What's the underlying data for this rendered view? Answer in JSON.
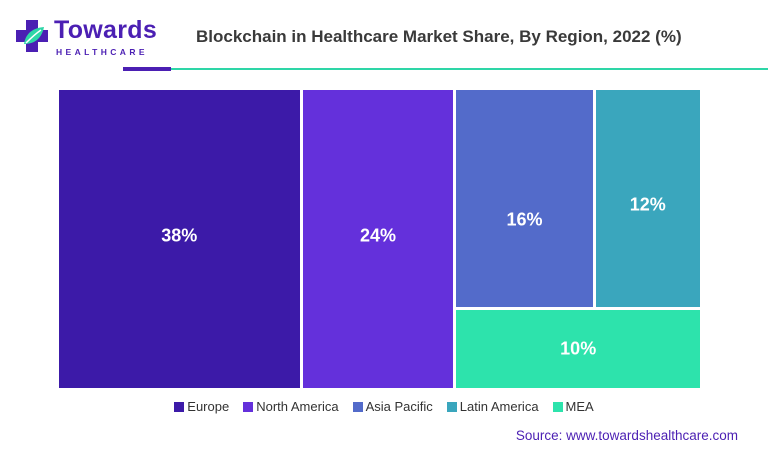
{
  "brand": {
    "name": "Towards",
    "sub": "HEALTHCARE",
    "color": "#4b1fb3",
    "accent": "#2ed6a7",
    "icon": "medical-cross-leaf-icon"
  },
  "source_text": "Source: www.towardshealthcare.com",
  "chart_data": {
    "type": "treemap",
    "title": "Blockchain in Healthcare Market Share, By Region, 2022 (%)",
    "unit": "%",
    "series": [
      {
        "name": "Europe",
        "value": 38,
        "label": "38%",
        "color": "#3c1aa8"
      },
      {
        "name": "North America",
        "value": 24,
        "label": "24%",
        "color": "#6430db"
      },
      {
        "name": "Asia Pacific",
        "value": 16,
        "label": "16%",
        "color": "#536bca"
      },
      {
        "name": "Latin America",
        "value": 12,
        "label": "12%",
        "color": "#3aa6bd"
      },
      {
        "name": "MEA",
        "value": 10,
        "label": "10%",
        "color": "#2de3ac"
      }
    ],
    "legend_position": "bottom-center",
    "grid": false
  }
}
